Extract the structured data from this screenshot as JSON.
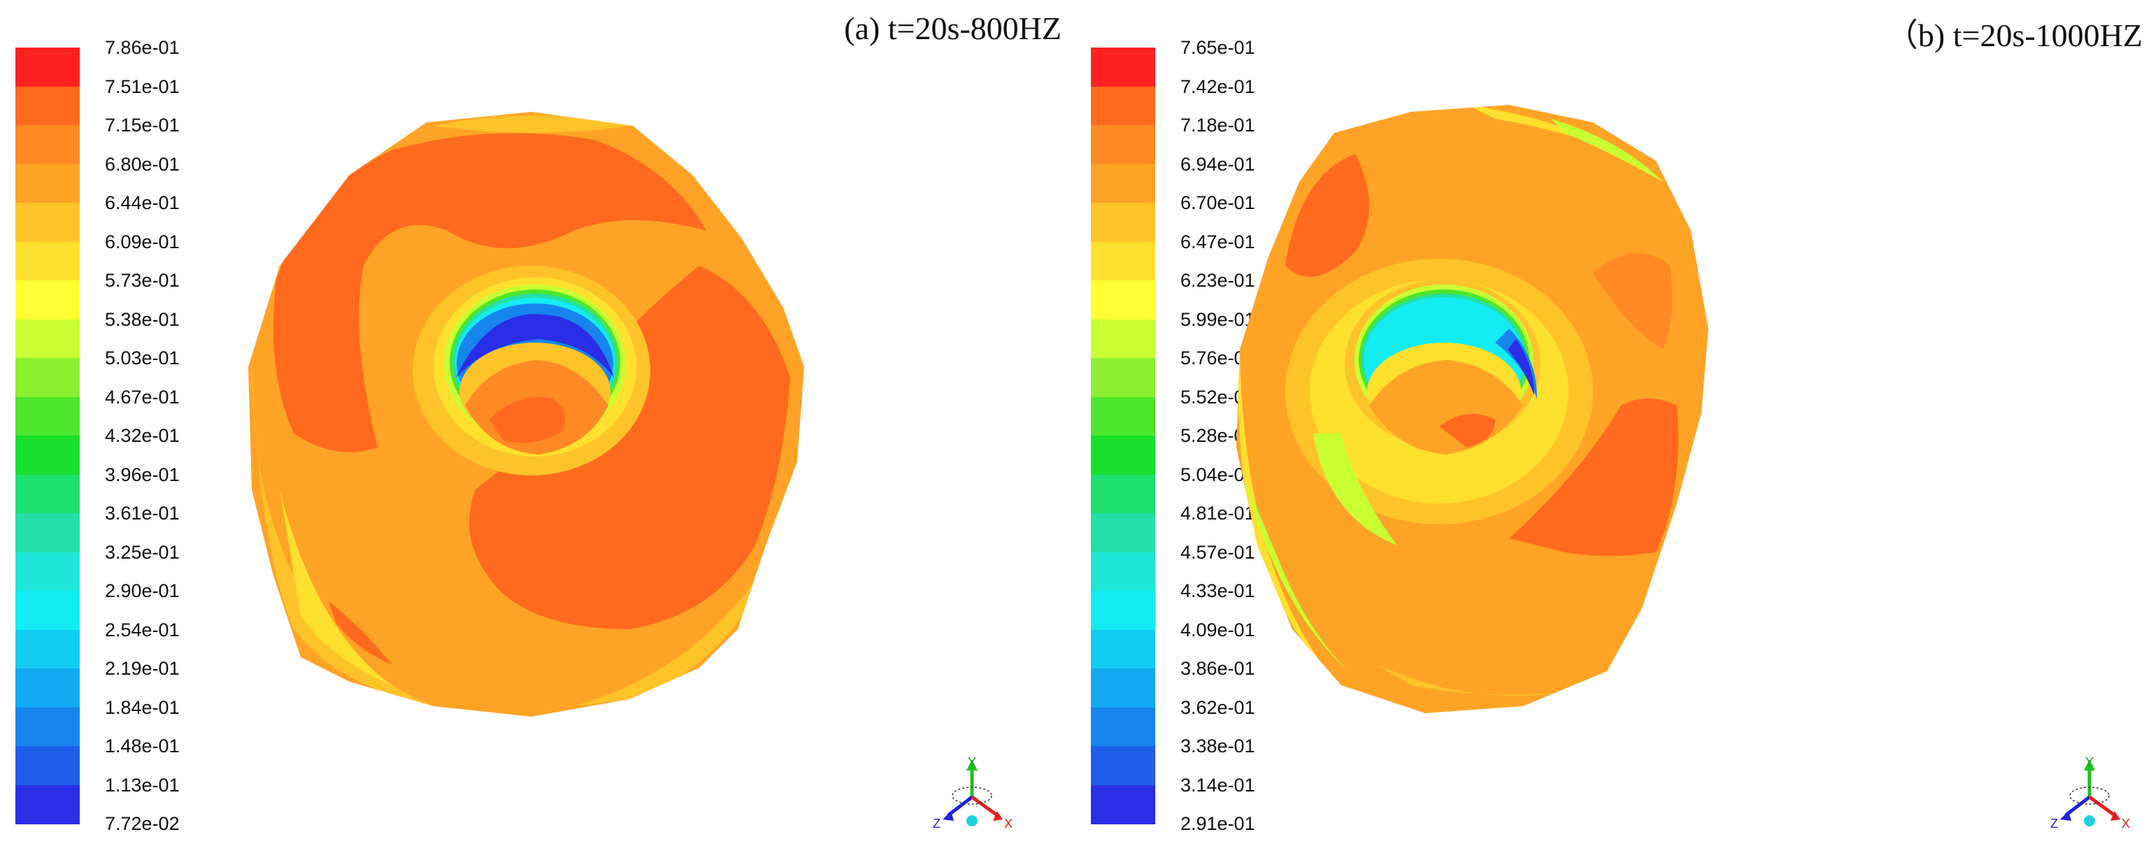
{
  "panels": [
    {
      "title": "(a) t=20s-800HZ",
      "legend_values": [
        "7.86e-01",
        "7.51e-01",
        "7.15e-01",
        "6.80e-01",
        "6.44e-01",
        "6.09e-01",
        "5.73e-01",
        "5.38e-01",
        "5.03e-01",
        "4.67e-01",
        "4.32e-01",
        "3.96e-01",
        "3.61e-01",
        "3.25e-01",
        "2.90e-01",
        "2.54e-01",
        "2.19e-01",
        "1.84e-01",
        "1.48e-01",
        "1.13e-01",
        "7.72e-02"
      ]
    },
    {
      "title": "（b) t=20s-1000HZ",
      "legend_values": [
        "7.65e-01",
        "7.42e-01",
        "7.18e-01",
        "6.94e-01",
        "6.70e-01",
        "6.47e-01",
        "6.23e-01",
        "5.99e-01",
        "5.76e-01",
        "5.52e-01",
        "5.28e-01",
        "5.04e-01",
        "4.81e-01",
        "4.57e-01",
        "4.33e-01",
        "4.09e-01",
        "3.86e-01",
        "3.62e-01",
        "3.38e-01",
        "3.14e-01",
        "2.91e-01"
      ]
    }
  ],
  "legend_colors": [
    "#ff2020",
    "#ff6a1e",
    "#ff8a24",
    "#ffa326",
    "#ffc32a",
    "#ffe02e",
    "#ffff33",
    "#c8ff33",
    "#8cf030",
    "#4ce62c",
    "#18e02c",
    "#1ee06e",
    "#22e0a8",
    "#1ee6d8",
    "#14ecf4",
    "#12cdf2",
    "#13aaf2",
    "#1785ee",
    "#1e5ee8",
    "#2a2ee6"
  ],
  "axes_labels": {
    "y": "Y",
    "z": "Z",
    "x": "X"
  },
  "axes_colors": {
    "y": "#20c020",
    "z": "#2020e0",
    "x": "#e02020",
    "origin": "#20d0e0"
  }
}
